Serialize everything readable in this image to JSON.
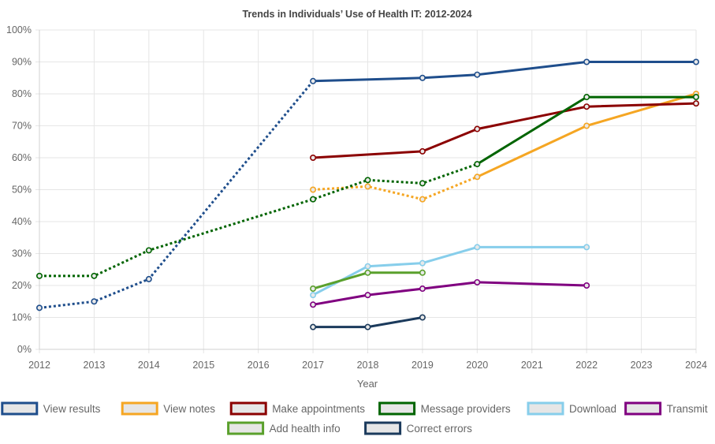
{
  "chart_data": {
    "type": "line",
    "title": "Trends in Individuals’ Use of Health IT: 2012-2024",
    "xlabel": "Year",
    "ylabel": "",
    "x": [
      2012,
      2013,
      2014,
      2015,
      2016,
      2017,
      2018,
      2019,
      2020,
      2021,
      2022,
      2023,
      2024
    ],
    "x_tick_labels": [
      "2012",
      "2013",
      "2014",
      "2015",
      "2016",
      "2017",
      "2018",
      "2019",
      "2020",
      "2021",
      "2022",
      "2023",
      "2024"
    ],
    "ylim": [
      0,
      100
    ],
    "y_tick_labels": [
      "0%",
      "10%",
      "20%",
      "30%",
      "40%",
      "50%",
      "60%",
      "70%",
      "80%",
      "90%",
      "100%"
    ],
    "grid": true,
    "legend_position": "bottom",
    "series": [
      {
        "name": "View results",
        "color": "#1f4e8c",
        "segments": [
          {
            "style": "dotted",
            "points": [
              [
                2012,
                13
              ],
              [
                2013,
                15
              ],
              [
                2014,
                22
              ],
              [
                2017,
                84
              ]
            ]
          },
          {
            "style": "solid",
            "points": [
              [
                2017,
                84
              ],
              [
                2019,
                85
              ],
              [
                2020,
                86
              ],
              [
                2022,
                90
              ],
              [
                2024,
                90
              ]
            ]
          }
        ]
      },
      {
        "name": "View notes",
        "color": "#f5a623",
        "segments": [
          {
            "style": "dotted",
            "points": [
              [
                2017,
                50
              ],
              [
                2018,
                51
              ],
              [
                2019,
                47
              ],
              [
                2020,
                54
              ]
            ]
          },
          {
            "style": "solid",
            "points": [
              [
                2020,
                54
              ],
              [
                2022,
                70
              ],
              [
                2024,
                80
              ]
            ]
          }
        ]
      },
      {
        "name": "Make appointments",
        "color": "#8b0000",
        "segments": [
          {
            "style": "solid",
            "points": [
              [
                2017,
                60
              ],
              [
                2019,
                62
              ],
              [
                2020,
                69
              ],
              [
                2022,
                76
              ],
              [
                2024,
                77
              ]
            ]
          }
        ]
      },
      {
        "name": "Message providers",
        "color": "#006400",
        "segments": [
          {
            "style": "dotted",
            "points": [
              [
                2012,
                23
              ],
              [
                2013,
                23
              ],
              [
                2014,
                31
              ],
              [
                2017,
                47
              ],
              [
                2018,
                53
              ],
              [
                2019,
                52
              ],
              [
                2020,
                58
              ]
            ]
          },
          {
            "style": "solid",
            "points": [
              [
                2020,
                58
              ],
              [
                2022,
                79
              ],
              [
                2024,
                79
              ]
            ]
          }
        ]
      },
      {
        "name": "Download",
        "color": "#87ceeb",
        "segments": [
          {
            "style": "solid",
            "points": [
              [
                2017,
                17
              ],
              [
                2018,
                26
              ],
              [
                2019,
                27
              ],
              [
                2020,
                32
              ],
              [
                2022,
                32
              ]
            ]
          }
        ]
      },
      {
        "name": "Transmit",
        "color": "#800080",
        "segments": [
          {
            "style": "solid",
            "points": [
              [
                2017,
                14
              ],
              [
                2018,
                17
              ],
              [
                2019,
                19
              ],
              [
                2020,
                21
              ],
              [
                2022,
                20
              ]
            ]
          }
        ]
      },
      {
        "name": "Add health info",
        "color": "#5aa02c",
        "segments": [
          {
            "style": "solid",
            "points": [
              [
                2017,
                19
              ],
              [
                2018,
                24
              ],
              [
                2019,
                24
              ]
            ]
          }
        ]
      },
      {
        "name": "Correct errors",
        "color": "#1b3a5c",
        "segments": [
          {
            "style": "solid",
            "points": [
              [
                2017,
                7
              ],
              [
                2018,
                7
              ],
              [
                2019,
                10
              ]
            ]
          }
        ]
      }
    ]
  }
}
